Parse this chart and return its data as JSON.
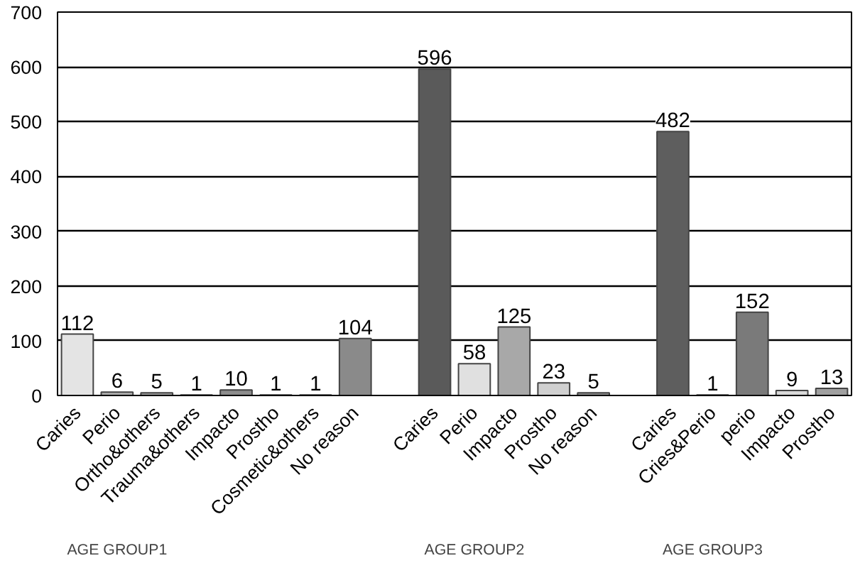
{
  "chart_data": {
    "type": "bar",
    "categories": [
      "Caries",
      "Perio",
      "Ortho&others",
      "Trauma&others",
      "Impacto",
      "Prostho",
      "Cosmetic&others",
      "No reason",
      null,
      "Caries",
      "Perio",
      "Impacto",
      "Prostho",
      "No reason",
      null,
      "Caries",
      "Cries&Perio",
      "perio",
      "Impacto",
      "Prostho"
    ],
    "values": [
      112,
      6,
      5,
      1,
      10,
      1,
      1,
      104,
      null,
      596,
      58,
      125,
      23,
      5,
      null,
      482,
      1,
      152,
      9,
      13
    ],
    "colors": [
      "#e4e4e4",
      "#b0b0b0",
      "#a0a0a0",
      "#909090",
      "#8c8c8c",
      "#c0c0c0",
      "#bcbcbc",
      "#8a8a8a",
      null,
      "#5a5a5a",
      "#e0e0e0",
      "#a8a8a8",
      "#d0d0d0",
      "#909090",
      null,
      "#5e5e5e",
      "#909090",
      "#7a7a7a",
      "#d8d8d8",
      "#a0a0a0"
    ],
    "ylim": [
      0,
      700
    ],
    "yticks": [
      0,
      100,
      200,
      300,
      400,
      500,
      600,
      700
    ],
    "grid": "y",
    "data_labels": true,
    "annotations": [
      "AGE GROUP1",
      "AGE GROUP2",
      "AGE GROUP3"
    ]
  }
}
